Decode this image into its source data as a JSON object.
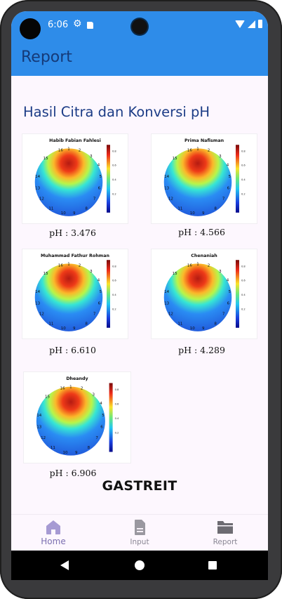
{
  "status_bar": {
    "time": "6:06"
  },
  "app_bar": {
    "title": "Report"
  },
  "main": {
    "section_title": "Hasil Citra dan Konversi pH",
    "results": [
      {
        "name": "Habib Fabian Fahlesi",
        "ph_label": "pH : 3.476"
      },
      {
        "name": "Prima Nafisman",
        "ph_label": "pH : 4.566"
      },
      {
        "name": "Muhammad Fathur Rohman",
        "ph_label": "pH : 6.610"
      },
      {
        "name": "Chenaniah",
        "ph_label": "pH : 4.289"
      },
      {
        "name": "Dheandy",
        "ph_label": "pH : 6.906"
      }
    ],
    "electrode_labels": [
      "16",
      "1",
      "2",
      "3",
      "4",
      "5",
      "6",
      "7",
      "8",
      "9",
      "10",
      "11",
      "12",
      "13",
      "14",
      "15"
    ],
    "colorbar_ticks": [
      "0.8",
      "0.6",
      "0.4",
      "0.2"
    ],
    "brand": "GASTREIT"
  },
  "bottom_nav": {
    "items": [
      {
        "label": "Home",
        "active": true,
        "icon": "home-icon"
      },
      {
        "label": "Input",
        "active": false,
        "icon": "document-icon"
      },
      {
        "label": "Report",
        "active": false,
        "icon": "folder-icon"
      }
    ]
  },
  "colors": {
    "primary": "#2e8ce9",
    "title": "#1c3c86",
    "background": "#fdf7fe"
  }
}
